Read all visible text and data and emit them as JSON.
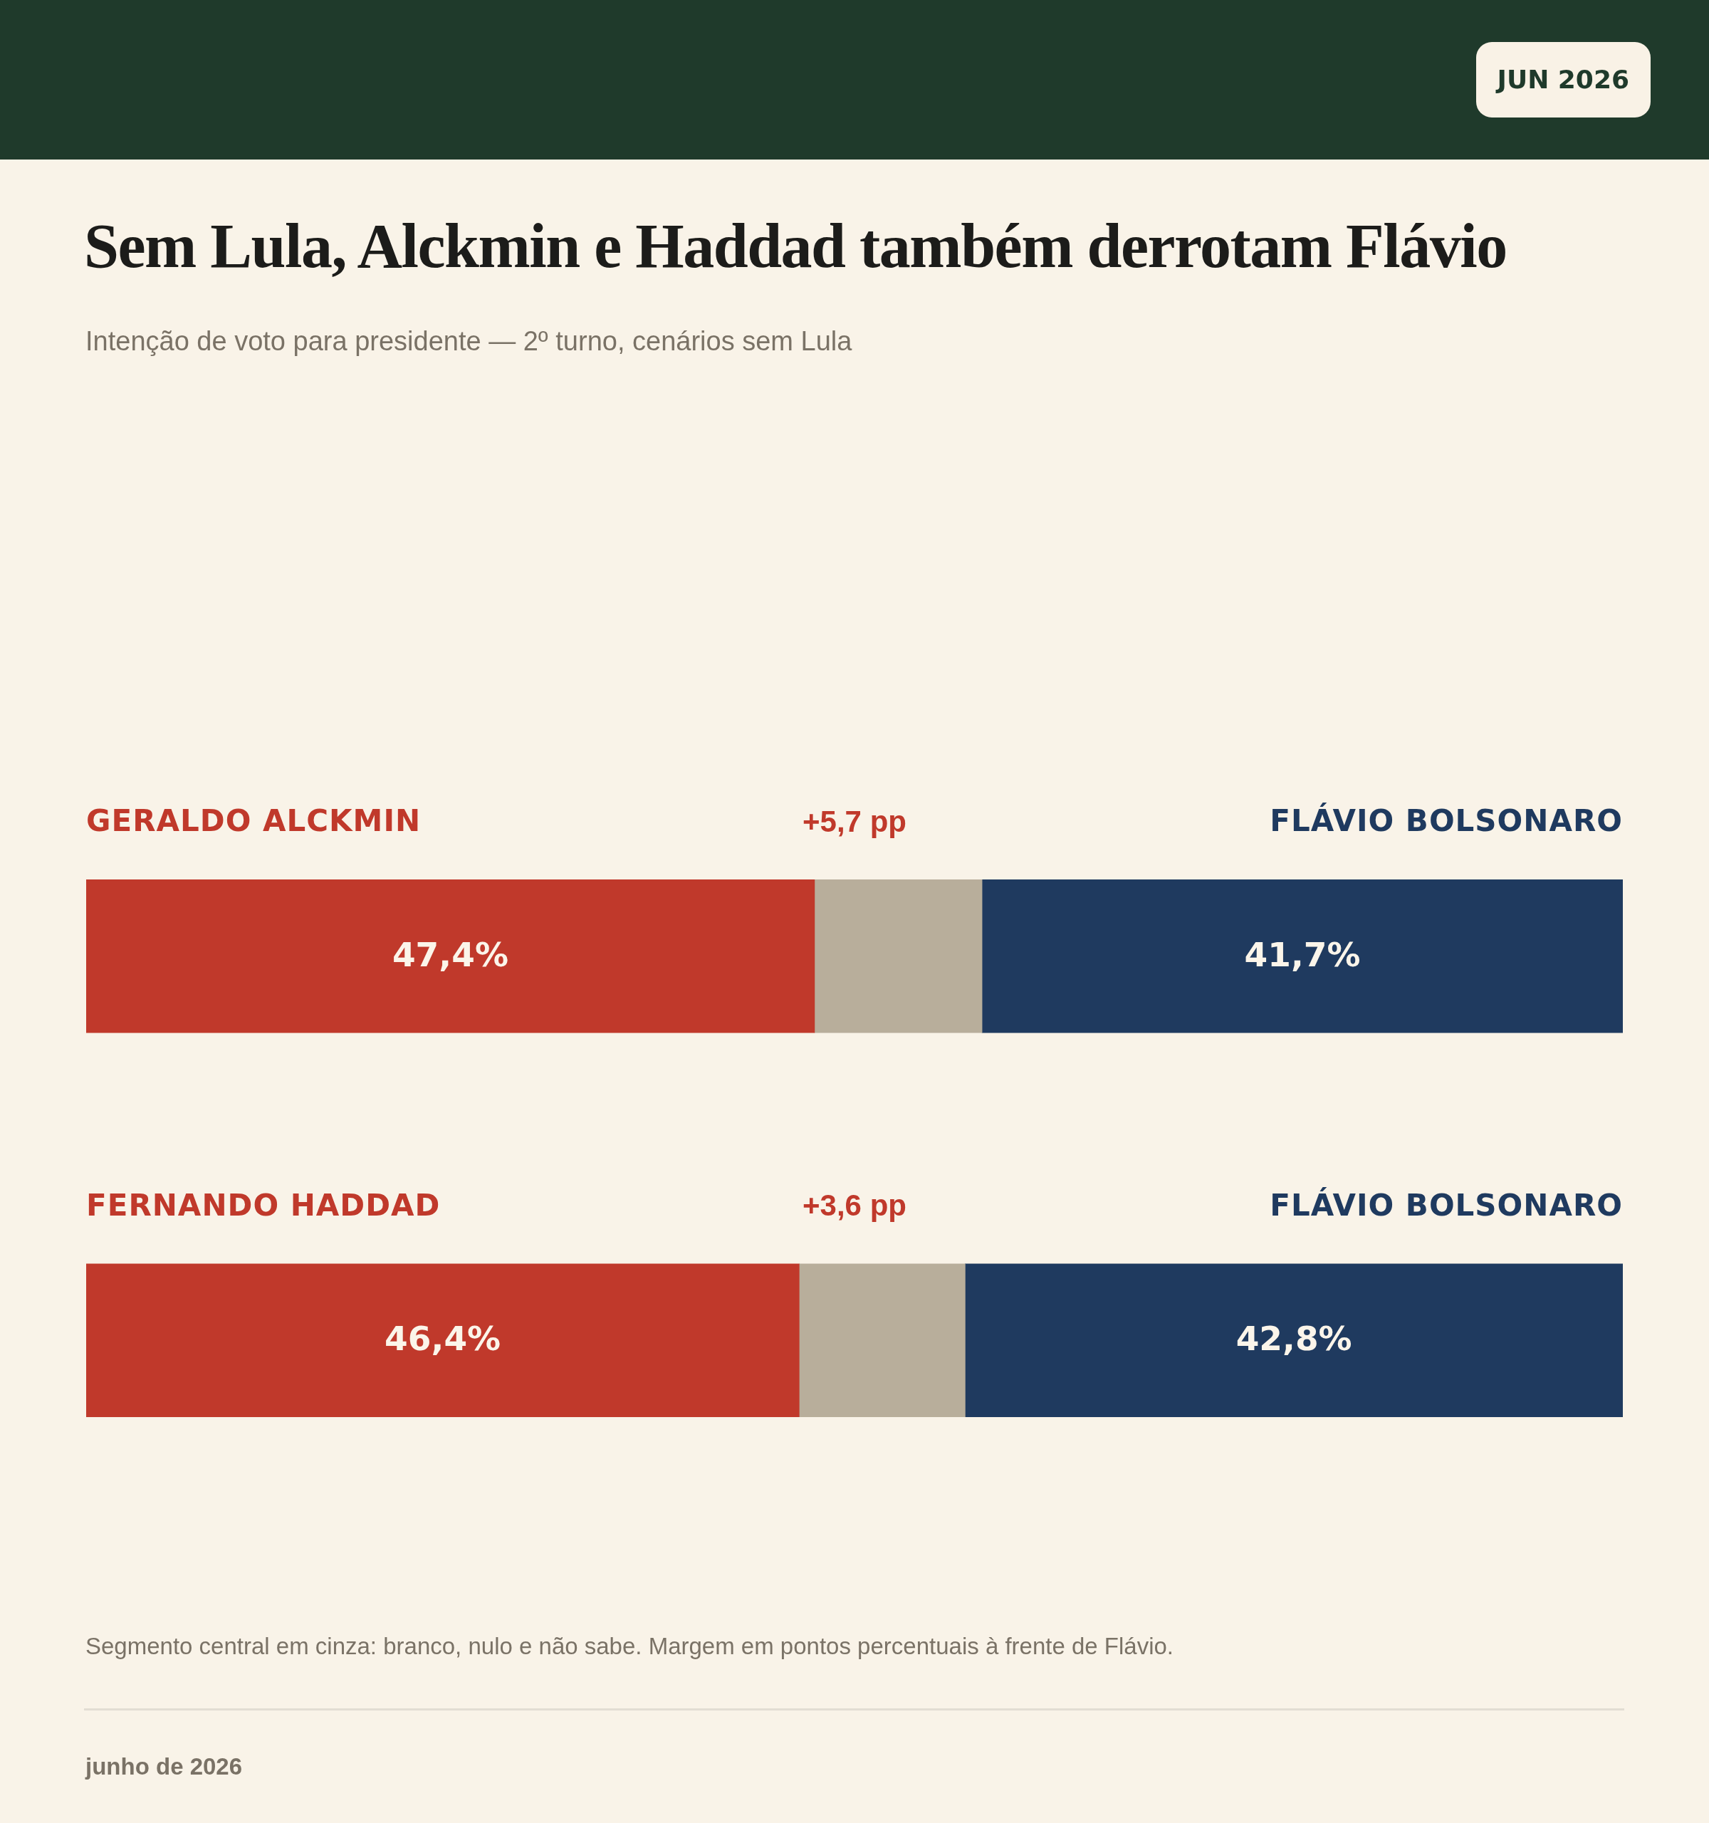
{
  "chart_data": {
    "type": "bar",
    "orientation": "horizontal",
    "stacked": true,
    "title": "Sem Lula, Alckmin e Haddad também derrotam Flávio",
    "subtitle": "Intenção de voto para presidente — 2º turno, cenários sem Lula",
    "categories": [
      "GERALDO ALCKMIN",
      "FERNANDO HADDAD"
    ],
    "series": [
      {
        "color": "#c0392b",
        "values": [
          47.4,
          46.4
        ],
        "value_labels": [
          "47,4%",
          "46,4%"
        ]
      },
      {
        "color": "#b8ae9b",
        "values": [
          10.9,
          10.8
        ]
      },
      {
        "name": "FLÁVIO BOLSONARO",
        "color": "#1f3a5f",
        "values": [
          41.7,
          42.8
        ],
        "value_labels": [
          "41,7%",
          "42,8%"
        ]
      }
    ],
    "xlim": [
      0,
      100
    ],
    "tick_labels": "y",
    "annotations": [
      "+5,7 pp",
      "+3,6 pp",
      "JUN 2026",
      "Segmento central em cinza: branco, nulo e não sabe. Margem em pontos percentuais à frente de Flávio.",
      "junho de 2026"
    ]
  }
}
